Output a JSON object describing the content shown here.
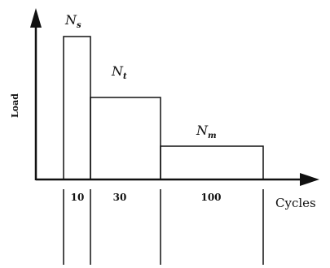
{
  "axes": {
    "y_label": "Load",
    "x_label": "Cycles"
  },
  "blocks": [
    {
      "letter": "N",
      "sub": "s",
      "cycles_label": "10"
    },
    {
      "letter": "N",
      "sub": "t",
      "cycles_label": "30"
    },
    {
      "letter": "N",
      "sub": "m",
      "cycles_label": "100"
    }
  ],
  "colors": {
    "ink": "#111111",
    "background": "#ffffff"
  }
}
